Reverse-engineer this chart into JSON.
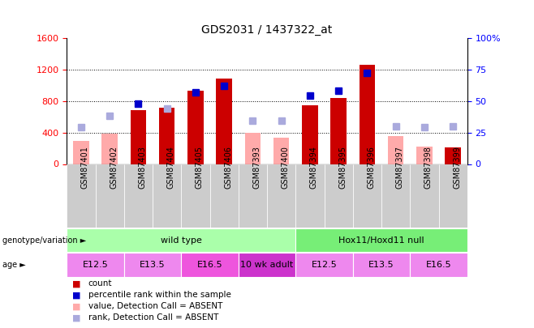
{
  "title": "GDS2031 / 1437322_at",
  "samples": [
    "GSM87401",
    "GSM87402",
    "GSM87403",
    "GSM87404",
    "GSM87405",
    "GSM87406",
    "GSM87393",
    "GSM87400",
    "GSM87394",
    "GSM87395",
    "GSM87396",
    "GSM87397",
    "GSM87398",
    "GSM87399"
  ],
  "count_values": [
    null,
    null,
    680,
    710,
    930,
    1080,
    null,
    null,
    740,
    840,
    1260,
    null,
    null,
    210
  ],
  "count_absent": [
    290,
    380,
    null,
    null,
    null,
    null,
    390,
    330,
    null,
    null,
    null,
    350,
    220,
    null
  ],
  "rank_present": [
    null,
    null,
    48,
    null,
    57,
    62,
    null,
    null,
    54,
    58,
    72,
    null,
    null,
    null
  ],
  "rank_absent": [
    29,
    38,
    null,
    44,
    null,
    null,
    34,
    34,
    null,
    null,
    null,
    30,
    29,
    30
  ],
  "ylim_left": [
    0,
    1600
  ],
  "ylim_right": [
    0,
    100
  ],
  "yticks_left": [
    0,
    400,
    800,
    1200,
    1600
  ],
  "yticks_right": [
    0,
    25,
    50,
    75,
    100
  ],
  "yticklabels_left": [
    "0",
    "400",
    "800",
    "1200",
    "1600"
  ],
  "yticklabels_right": [
    "0",
    "25",
    "50",
    "75",
    "100%"
  ],
  "color_count": "#cc0000",
  "color_count_absent": "#ffaaaa",
  "color_rank_present": "#0000cc",
  "color_rank_absent": "#aaaadd",
  "genotype_groups": [
    {
      "label": "wild type",
      "start": 0,
      "end": 8,
      "color": "#aaffaa"
    },
    {
      "label": "Hox11/Hoxd11 null",
      "start": 8,
      "end": 14,
      "color": "#77ee77"
    }
  ],
  "age_colors": [
    "#ee88ee",
    "#ee88ee",
    "#ee55dd",
    "#cc33cc",
    "#ee88ee",
    "#ee88ee",
    "#ee88ee"
  ],
  "age_groups": [
    {
      "label": "E12.5",
      "start": 0,
      "end": 2
    },
    {
      "label": "E13.5",
      "start": 2,
      "end": 4
    },
    {
      "label": "E16.5",
      "start": 4,
      "end": 6
    },
    {
      "label": "10 wk adult",
      "start": 6,
      "end": 8
    },
    {
      "label": "E12.5",
      "start": 8,
      "end": 10
    },
    {
      "label": "E13.5",
      "start": 10,
      "end": 12
    },
    {
      "label": "E16.5",
      "start": 12,
      "end": 14
    }
  ],
  "legend_items": [
    {
      "label": "count",
      "color": "#cc0000"
    },
    {
      "label": "percentile rank within the sample",
      "color": "#0000cc"
    },
    {
      "label": "value, Detection Call = ABSENT",
      "color": "#ffaaaa"
    },
    {
      "label": "rank, Detection Call = ABSENT",
      "color": "#aaaadd"
    }
  ],
  "fig_width": 6.58,
  "fig_height": 4.05,
  "dpi": 100
}
